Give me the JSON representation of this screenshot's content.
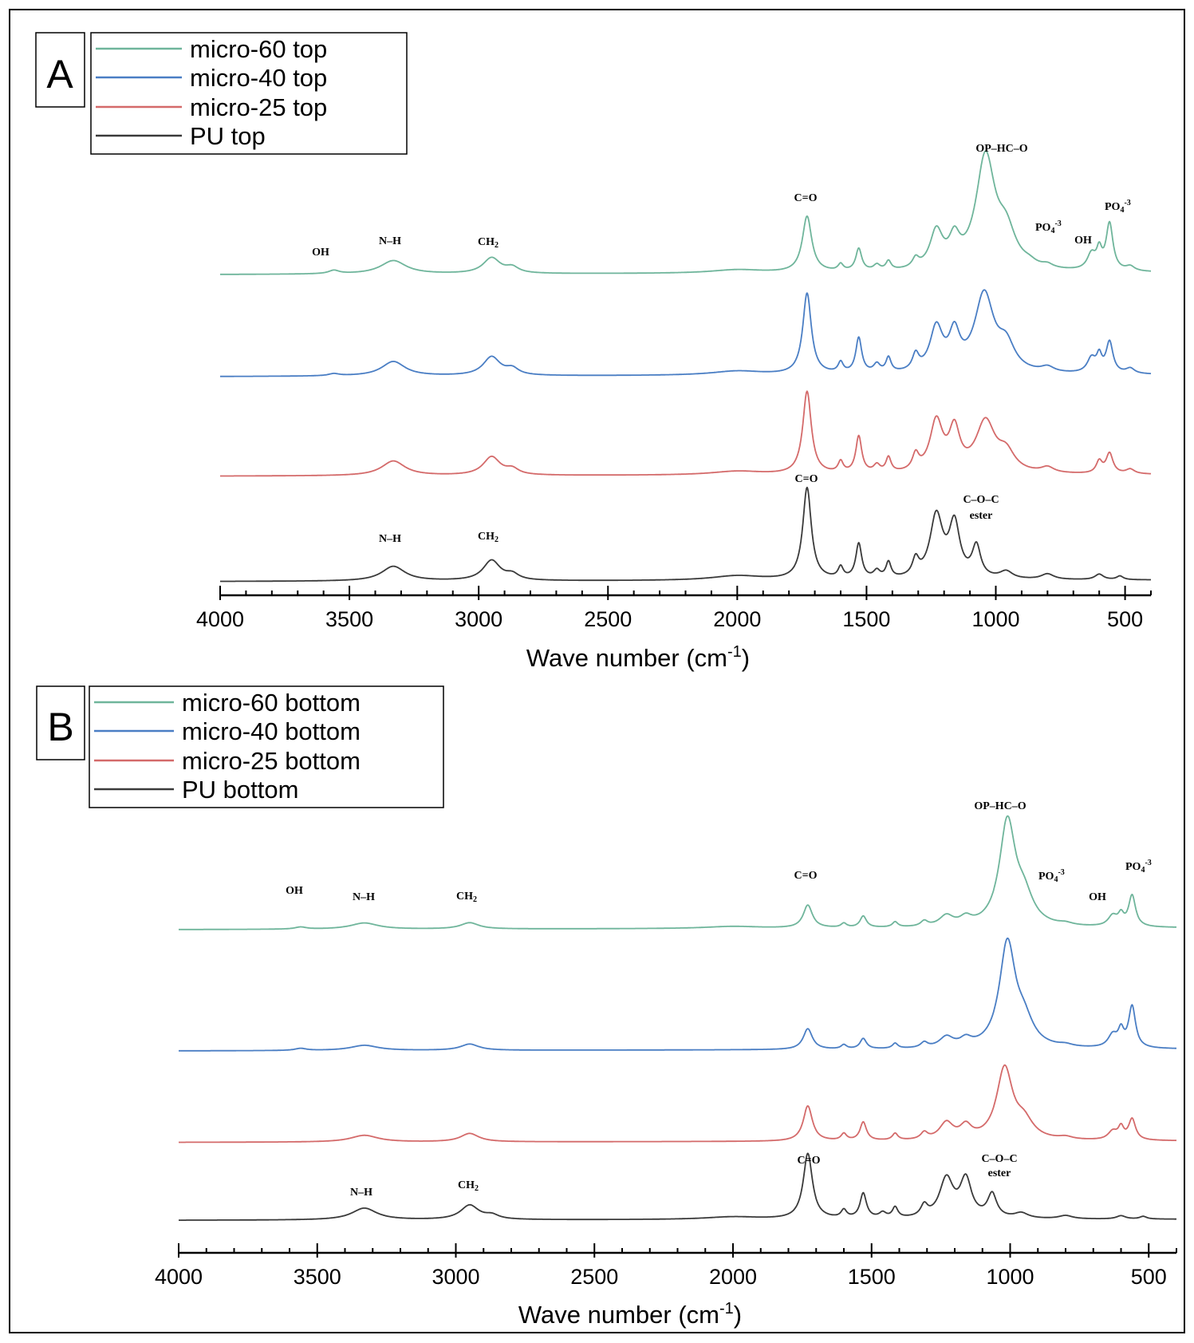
{
  "chart_data": [
    {
      "type": "line",
      "panel": "A",
      "title": "",
      "xlabel": "Wave number (cm",
      "xlabel_sup": "-1",
      "xlabel_close": ")",
      "xlim": [
        4000,
        400
      ],
      "xticks": [
        4000,
        3500,
        3000,
        2500,
        2000,
        1500,
        1000,
        500
      ],
      "legend": [
        "micro-60 top",
        "micro-40 top",
        "micro-25 top",
        "PU top"
      ],
      "series": [
        {
          "name": "micro-60 top",
          "color": "#6fb59b",
          "baseline": 0.05,
          "peaks": [
            [
              3560,
              0.03,
              25
            ],
            [
              3330,
              0.12,
              60
            ],
            [
              2950,
              0.14,
              40
            ],
            [
              2870,
              0.05,
              30
            ],
            [
              2000,
              0.03,
              120
            ],
            [
              1730,
              0.5,
              22
            ],
            [
              1600,
              0.06,
              12
            ],
            [
              1530,
              0.2,
              14
            ],
            [
              1460,
              0.05,
              15
            ],
            [
              1415,
              0.08,
              12
            ],
            [
              1310,
              0.08,
              15
            ],
            [
              1230,
              0.33,
              30
            ],
            [
              1160,
              0.23,
              25
            ],
            [
              1040,
              1.0,
              45
            ],
            [
              960,
              0.3,
              45
            ],
            [
              870,
              0.03,
              30
            ],
            [
              800,
              0.03,
              25
            ],
            [
              630,
              0.14,
              20
            ],
            [
              600,
              0.16,
              12
            ],
            [
              560,
              0.42,
              16
            ],
            [
              480,
              0.04,
              20
            ]
          ]
        },
        {
          "name": "micro-40 top",
          "color": "#4a7ec4",
          "baseline": 0.05,
          "peaks": [
            [
              3560,
              0.02,
              25
            ],
            [
              3330,
              0.14,
              55
            ],
            [
              2950,
              0.18,
              40
            ],
            [
              2870,
              0.06,
              30
            ],
            [
              2000,
              0.04,
              120
            ],
            [
              1730,
              0.78,
              20
            ],
            [
              1600,
              0.1,
              12
            ],
            [
              1530,
              0.34,
              14
            ],
            [
              1460,
              0.08,
              15
            ],
            [
              1415,
              0.14,
              12
            ],
            [
              1310,
              0.15,
              15
            ],
            [
              1230,
              0.42,
              30
            ],
            [
              1160,
              0.34,
              25
            ],
            [
              1045,
              0.75,
              45
            ],
            [
              960,
              0.24,
              40
            ],
            [
              800,
              0.05,
              30
            ],
            [
              630,
              0.14,
              20
            ],
            [
              600,
              0.15,
              12
            ],
            [
              560,
              0.3,
              16
            ],
            [
              480,
              0.05,
              20
            ]
          ]
        },
        {
          "name": "micro-25 top",
          "color": "#d46a6a",
          "baseline": 0.05,
          "peaks": [
            [
              3330,
              0.16,
              55
            ],
            [
              2950,
              0.2,
              40
            ],
            [
              2870,
              0.06,
              30
            ],
            [
              2000,
              0.04,
              120
            ],
            [
              1730,
              0.9,
              20
            ],
            [
              1600,
              0.12,
              12
            ],
            [
              1530,
              0.4,
              14
            ],
            [
              1460,
              0.08,
              15
            ],
            [
              1415,
              0.16,
              12
            ],
            [
              1310,
              0.17,
              15
            ],
            [
              1230,
              0.55,
              30
            ],
            [
              1160,
              0.44,
              25
            ],
            [
              1040,
              0.55,
              45
            ],
            [
              960,
              0.2,
              40
            ],
            [
              800,
              0.06,
              30
            ],
            [
              600,
              0.13,
              14
            ],
            [
              560,
              0.22,
              16
            ],
            [
              480,
              0.05,
              20
            ]
          ]
        },
        {
          "name": "PU top",
          "color": "#3a3a3a",
          "baseline": 0.05,
          "peaks": [
            [
              3330,
              0.16,
              55
            ],
            [
              2950,
              0.22,
              40
            ],
            [
              2870,
              0.06,
              30
            ],
            [
              2000,
              0.05,
              120
            ],
            [
              1730,
              1.0,
              20
            ],
            [
              1600,
              0.12,
              12
            ],
            [
              1530,
              0.38,
              14
            ],
            [
              1460,
              0.08,
              15
            ],
            [
              1415,
              0.17,
              12
            ],
            [
              1310,
              0.18,
              15
            ],
            [
              1230,
              0.68,
              30
            ],
            [
              1160,
              0.58,
              25
            ],
            [
              1075,
              0.34,
              20
            ],
            [
              960,
              0.08,
              30
            ],
            [
              800,
              0.06,
              30
            ],
            [
              600,
              0.06,
              20
            ],
            [
              520,
              0.04,
              15
            ]
          ]
        }
      ],
      "annotations": [
        "OH",
        "N–H",
        "CH",
        "C=O",
        "OP–HC–O",
        "PO",
        "OH",
        "PO",
        "C=O",
        "C–O–C",
        "ester",
        "N–H",
        "CH"
      ],
      "annotation_parts": {
        "sub2": "2",
        "sub4": "4",
        "sup3": "-3"
      }
    },
    {
      "type": "line",
      "panel": "B",
      "title": "",
      "xlabel": "Wave number (cm",
      "xlabel_sup": "-1",
      "xlabel_close": ")",
      "xlim": [
        4000,
        400
      ],
      "xticks": [
        4000,
        3500,
        3000,
        2500,
        2000,
        1500,
        1000,
        500
      ],
      "legend": [
        "micro-60 bottom",
        "micro-40 bottom",
        "micro-25 bottom",
        "PU bottom"
      ],
      "series": [
        {
          "name": "micro-60 bottom",
          "color": "#6fb59b",
          "baseline": 0.05,
          "peaks": [
            [
              3560,
              0.02,
              25
            ],
            [
              3330,
              0.06,
              60
            ],
            [
              2950,
              0.06,
              40
            ],
            [
              2000,
              0.02,
              120
            ],
            [
              1730,
              0.22,
              20
            ],
            [
              1600,
              0.04,
              12
            ],
            [
              1530,
              0.11,
              14
            ],
            [
              1415,
              0.05,
              12
            ],
            [
              1310,
              0.05,
              15
            ],
            [
              1230,
              0.1,
              30
            ],
            [
              1160,
              0.07,
              25
            ],
            [
              1010,
              1.0,
              35
            ],
            [
              950,
              0.25,
              40
            ],
            [
              800,
              0.02,
              30
            ],
            [
              630,
              0.1,
              20
            ],
            [
              600,
              0.1,
              12
            ],
            [
              560,
              0.3,
              15
            ]
          ]
        },
        {
          "name": "micro-40 bottom",
          "color": "#4a7ec4",
          "baseline": 0.05,
          "peaks": [
            [
              3560,
              0.02,
              25
            ],
            [
              3330,
              0.05,
              60
            ],
            [
              2950,
              0.06,
              40
            ],
            [
              1730,
              0.2,
              20
            ],
            [
              1600,
              0.04,
              12
            ],
            [
              1530,
              0.1,
              14
            ],
            [
              1415,
              0.05,
              12
            ],
            [
              1310,
              0.05,
              15
            ],
            [
              1230,
              0.1,
              30
            ],
            [
              1160,
              0.07,
              25
            ],
            [
              1010,
              1.0,
              35
            ],
            [
              950,
              0.22,
              40
            ],
            [
              800,
              0.02,
              30
            ],
            [
              630,
              0.12,
              20
            ],
            [
              600,
              0.15,
              12
            ],
            [
              560,
              0.4,
              15
            ]
          ]
        },
        {
          "name": "micro-25 bottom",
          "color": "#d46a6a",
          "baseline": 0.05,
          "peaks": [
            [
              3330,
              0.08,
              60
            ],
            [
              2950,
              0.1,
              40
            ],
            [
              1730,
              0.42,
              20
            ],
            [
              1600,
              0.08,
              12
            ],
            [
              1530,
              0.22,
              14
            ],
            [
              1415,
              0.08,
              12
            ],
            [
              1310,
              0.08,
              15
            ],
            [
              1230,
              0.2,
              30
            ],
            [
              1160,
              0.15,
              25
            ],
            [
              1020,
              0.85,
              35
            ],
            [
              950,
              0.2,
              40
            ],
            [
              800,
              0.03,
              30
            ],
            [
              630,
              0.1,
              20
            ],
            [
              600,
              0.14,
              12
            ],
            [
              560,
              0.25,
              15
            ]
          ]
        },
        {
          "name": "PU bottom",
          "color": "#3a3a3a",
          "baseline": 0.05,
          "peaks": [
            [
              3330,
              0.18,
              55
            ],
            [
              2950,
              0.22,
              40
            ],
            [
              2870,
              0.06,
              30
            ],
            [
              2000,
              0.04,
              120
            ],
            [
              1730,
              1.0,
              20
            ],
            [
              1600,
              0.12,
              12
            ],
            [
              1530,
              0.38,
              14
            ],
            [
              1460,
              0.08,
              15
            ],
            [
              1415,
              0.16,
              12
            ],
            [
              1310,
              0.17,
              15
            ],
            [
              1230,
              0.6,
              30
            ],
            [
              1160,
              0.58,
              25
            ],
            [
              1065,
              0.36,
              20
            ],
            [
              960,
              0.08,
              30
            ],
            [
              800,
              0.05,
              30
            ],
            [
              600,
              0.05,
              20
            ],
            [
              520,
              0.04,
              15
            ]
          ]
        }
      ],
      "annotations": [
        "OH",
        "N–H",
        "CH",
        "C=O",
        "OP–HC–O",
        "PO",
        "OH",
        "PO",
        "C=O",
        "C–O–C",
        "ester",
        "N–H",
        "CH"
      ],
      "annotation_parts": {
        "sub2": "2",
        "sub4": "4",
        "sup3": "-3"
      }
    }
  ]
}
